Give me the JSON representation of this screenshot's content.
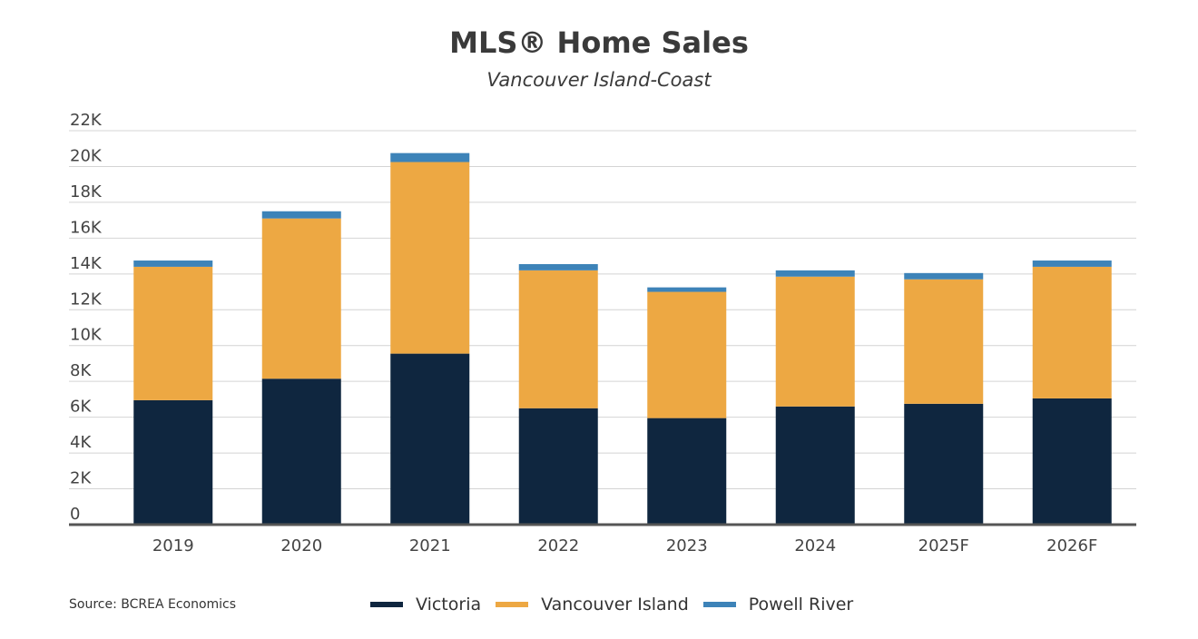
{
  "chart_data": {
    "type": "bar",
    "stacked": true,
    "title": "MLS® Home Sales",
    "subtitle": "Vancouver Island-Coast",
    "categories": [
      "2019",
      "2020",
      "2021",
      "2022",
      "2023",
      "2024",
      "2025F",
      "2026F"
    ],
    "series": [
      {
        "name": "Victoria",
        "color": "#0f263f",
        "values": [
          6950,
          8150,
          9550,
          6500,
          5950,
          6600,
          6750,
          7050
        ]
      },
      {
        "name": "Vancouver Island",
        "color": "#eda843",
        "values": [
          7450,
          8950,
          10700,
          7700,
          7050,
          7250,
          6950,
          7350
        ]
      },
      {
        "name": "Powell River",
        "color": "#3d83b8",
        "values": [
          350,
          400,
          500,
          350,
          250,
          350,
          350,
          350
        ]
      }
    ],
    "yticks": [
      "0",
      "2K",
      "4K",
      "6K",
      "8K",
      "10K",
      "12K",
      "14K",
      "16K",
      "18K",
      "20K",
      "22K"
    ],
    "ylim": [
      0,
      22000
    ],
    "xlabel": "",
    "ylabel": "",
    "grid": true,
    "legend": "bottom"
  },
  "source": "Source: BCREA Economics"
}
